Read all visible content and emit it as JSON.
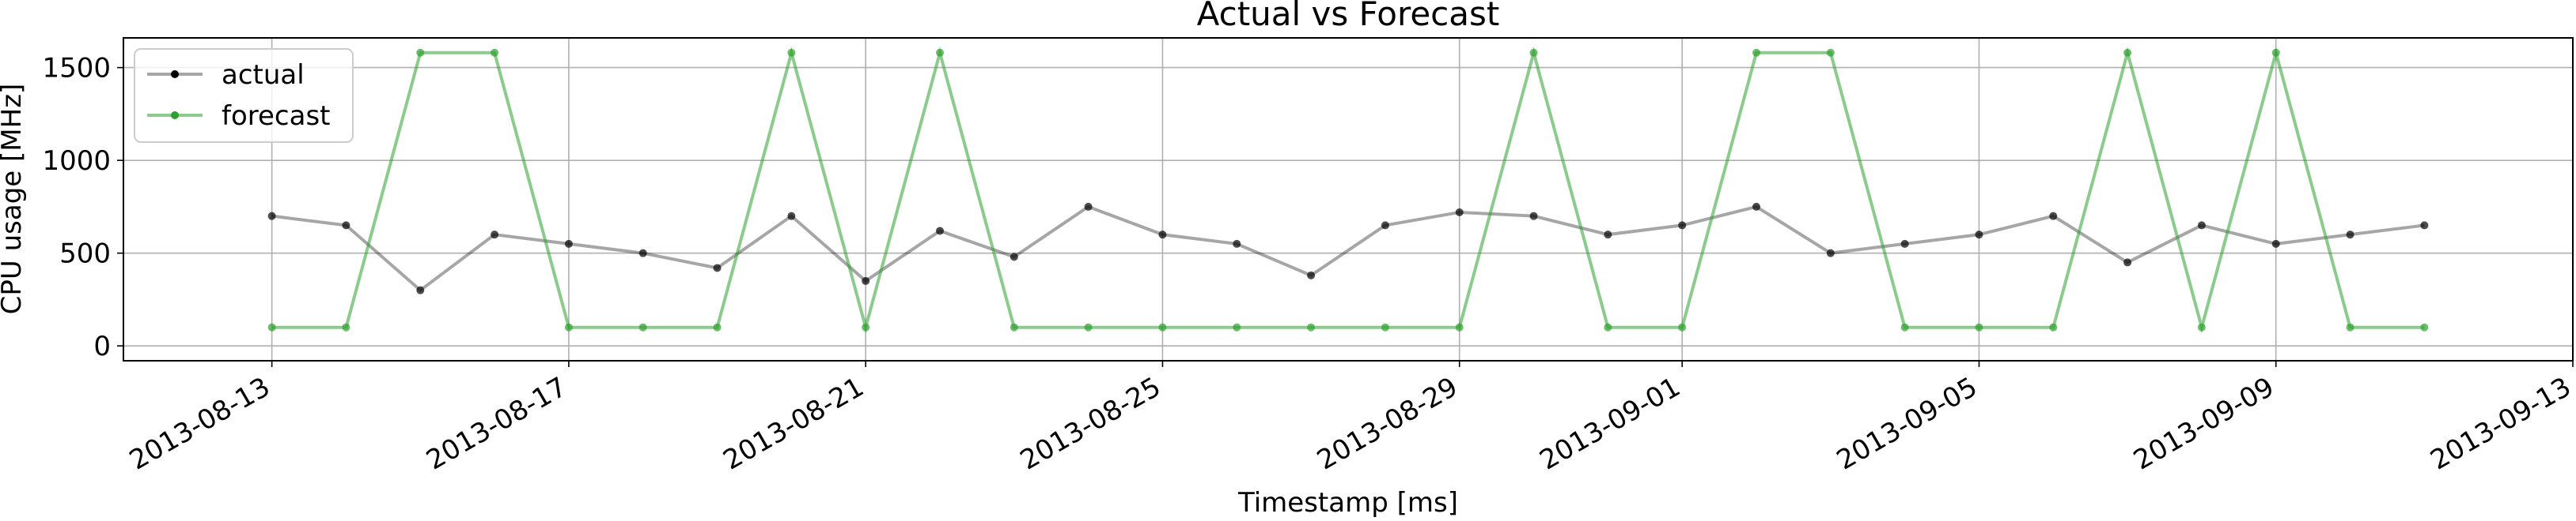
{
  "chart_data": {
    "type": "line",
    "title": "Actual vs Forecast",
    "x_label": "Timestamp [ms]",
    "y_label": "CPU usage [MHz]",
    "x": [
      "2013-08-13",
      "2013-08-14",
      "2013-08-15",
      "2013-08-16",
      "2013-08-17",
      "2013-08-18",
      "2013-08-19",
      "2013-08-20",
      "2013-08-21",
      "2013-08-22",
      "2013-08-23",
      "2013-08-24",
      "2013-08-25",
      "2013-08-26",
      "2013-08-27",
      "2013-08-28",
      "2013-08-29",
      "2013-08-30",
      "2013-08-31",
      "2013-09-01",
      "2013-09-02",
      "2013-09-03",
      "2013-09-04",
      "2013-09-05",
      "2013-09-06",
      "2013-09-07",
      "2013-09-08",
      "2013-09-09",
      "2013-09-10",
      "2013-09-11"
    ],
    "series": [
      {
        "name": "actual",
        "color": "#000000",
        "values": [
          700,
          650,
          300,
          600,
          550,
          500,
          420,
          700,
          350,
          620,
          480,
          750,
          600,
          550,
          380,
          650,
          720,
          700,
          600,
          650,
          750,
          500,
          550,
          600,
          700,
          450,
          650,
          550,
          600,
          650
        ]
      },
      {
        "name": "forecast",
        "color": "#2ca02c",
        "values": [
          100,
          100,
          1580,
          1580,
          100,
          100,
          100,
          1580,
          100,
          1580,
          100,
          100,
          100,
          100,
          100,
          100,
          100,
          1580,
          100,
          100,
          1580,
          1580,
          100,
          100,
          100,
          1580,
          100,
          1580,
          100,
          100
        ]
      }
    ],
    "xlim": [
      "2013-08-11",
      "2013-09-13"
    ],
    "xticks": [
      "2013-08-13",
      "2013-08-17",
      "2013-08-21",
      "2013-08-25",
      "2013-08-29",
      "2013-09-01",
      "2013-09-05",
      "2013-09-09",
      "2013-09-13"
    ],
    "ylim": [
      -80,
      1660
    ],
    "yticks": [
      0,
      500,
      1000,
      1500
    ],
    "grid": true,
    "legend": "upper left"
  }
}
